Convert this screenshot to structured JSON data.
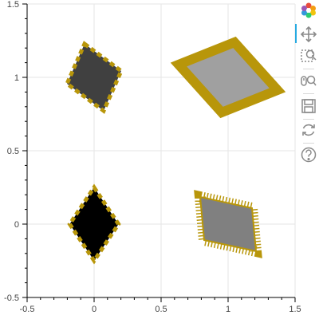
{
  "chart_data": {
    "type": "scatter",
    "title": "",
    "xlabel": "",
    "ylabel": "",
    "xlim": [
      -0.5,
      1.5
    ],
    "ylim": [
      -0.5,
      1.5
    ],
    "x_ticks": [
      "-0.5",
      "0",
      "0.5",
      "1",
      "1.5"
    ],
    "y_ticks": [
      "-0.5",
      "0",
      "0.5",
      "1",
      "1.5"
    ],
    "grid": true,
    "series": [
      {
        "marker": "diamond",
        "points": [
          {
            "x": 0,
            "y": 0,
            "fill": "#000000",
            "outline": "#b8960a",
            "outline_style": "dashed",
            "skew": 0
          },
          {
            "x": 0,
            "y": 1,
            "fill": "#404040",
            "outline": "#b8960a",
            "outline_style": "dashed",
            "skew": 0.35
          },
          {
            "x": 1,
            "y": 0,
            "fill": "#808080",
            "outline": "#b8960a",
            "outline_style": "comb",
            "skew": 0.35
          },
          {
            "x": 1,
            "y": 1,
            "fill": "#a0a0a0",
            "outline": "#b8960a",
            "outline_style": "solid",
            "skew": 1.0
          }
        ]
      }
    ]
  },
  "toolbar": {
    "tools": [
      "bokeh-logo-icon",
      "pan-icon",
      "box-zoom-icon",
      "wheel-zoom-icon",
      "save-icon",
      "reset-icon",
      "help-icon"
    ]
  }
}
